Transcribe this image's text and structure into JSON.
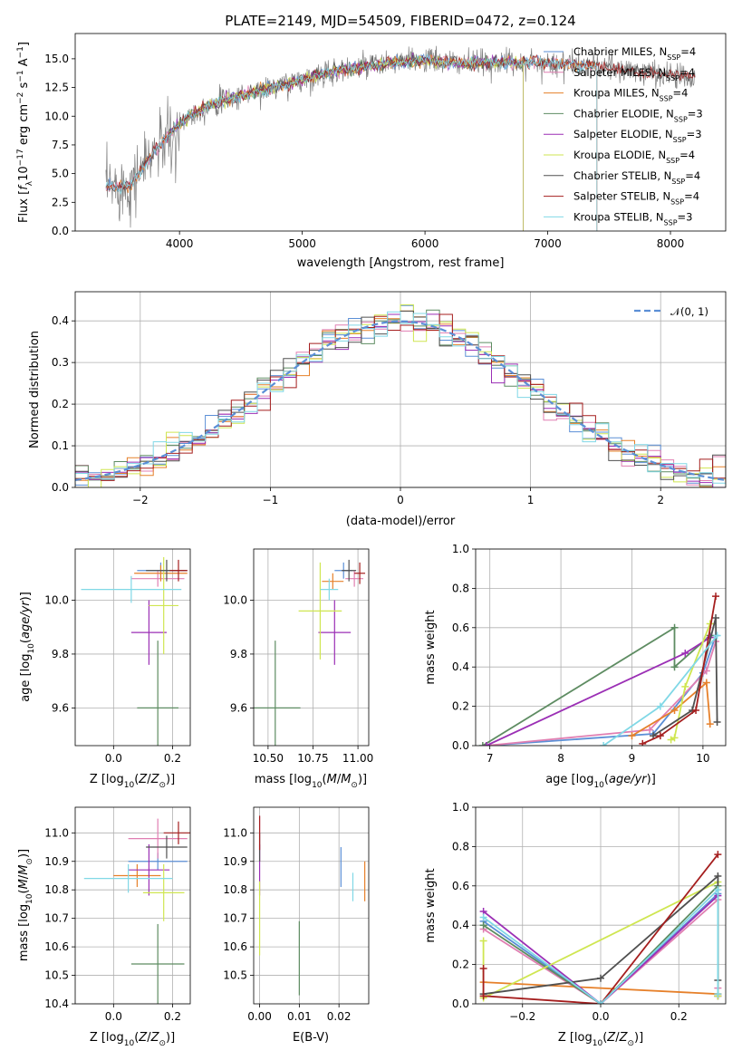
{
  "colors": {
    "Chabrier MILES": "#5b8fd6",
    "Salpeter MILES": "#e07fb2",
    "Kroupa MILES": "#e6802a",
    "Chabrier ELODIE": "#5e8c62",
    "Salpeter ELODIE": "#9b2fb5",
    "Kroupa ELODIE": "#cfe651",
    "Chabrier STELIB": "#505050",
    "Salpeter STELIB": "#a51e1e",
    "Kroupa STELIB": "#80d8e6",
    "data_spectrum": "#808080",
    "normal": "#5b8fd6"
  },
  "chart_data": [
    {
      "id": "spectrum",
      "type": "line",
      "title": "PLATE=2149, MJD=54509, FIBERID=0472, z=0.124",
      "xlabel": "wavelength [Angstrom, rest frame]",
      "ylabel": "Flux [f_λ 10^-17 erg cm^-2 s^-1 A^-1]",
      "xlim": [
        3150,
        8450
      ],
      "ylim": [
        0,
        17.2
      ],
      "xticks": [
        4000,
        5000,
        6000,
        7000,
        8000
      ],
      "yticks": [
        0.0,
        2.5,
        5.0,
        7.5,
        10.0,
        12.5,
        15.0
      ],
      "grid": false,
      "legend_position": "top-right",
      "continuum": {
        "x": [
          3400,
          3600,
          3800,
          3950,
          4100,
          4300,
          4500,
          4800,
          5000,
          5200,
          5500,
          5800,
          6000,
          6300,
          6600,
          6900,
          7200,
          7500,
          7800,
          8000,
          8200
        ],
        "y": [
          3.8,
          4.0,
          7.0,
          8.8,
          10.2,
          11.2,
          11.8,
          12.6,
          13.2,
          13.8,
          14.3,
          14.7,
          14.9,
          14.6,
          14.7,
          14.7,
          14.5,
          14.2,
          13.8,
          13.6,
          13.4
        ]
      },
      "series": [
        {
          "name": "Chabrier MILES",
          "nssp": "4",
          "x_range": [
            3400,
            7400
          ]
        },
        {
          "name": "Salpeter MILES",
          "nssp": "4",
          "x_range": [
            3400,
            7400
          ]
        },
        {
          "name": "Kroupa MILES",
          "nssp": "4",
          "x_range": [
            3400,
            7400
          ]
        },
        {
          "name": "Chabrier ELODIE",
          "nssp": "3",
          "x_range": [
            3900,
            6800
          ]
        },
        {
          "name": "Salpeter ELODIE",
          "nssp": "3",
          "x_range": [
            3900,
            6800
          ]
        },
        {
          "name": "Kroupa ELODIE",
          "nssp": "4",
          "x_range": [
            3900,
            6800
          ]
        },
        {
          "name": "Chabrier STELIB",
          "nssp": "4",
          "x_range": [
            3400,
            8200
          ]
        },
        {
          "name": "Salpeter STELIB",
          "nssp": "4",
          "x_range": [
            3400,
            8200
          ]
        },
        {
          "name": "Kroupa STELIB",
          "nssp": "3",
          "x_range": [
            3400,
            7400
          ]
        }
      ]
    },
    {
      "id": "residuals",
      "type": "line",
      "xlabel": "(data-model)/error",
      "ylabel": "Normed distribution",
      "xlim": [
        -2.5,
        2.5
      ],
      "ylim": [
        0,
        0.47
      ],
      "xticks": [
        -2,
        -1,
        0,
        1,
        2
      ],
      "yticks": [
        0.0,
        0.1,
        0.2,
        0.3,
        0.4
      ],
      "grid": true,
      "legend_position": "top-right",
      "bin_width": 0.1,
      "normal_label": "𝒩(0, 1)"
    },
    {
      "id": "age_vs_Z",
      "type": "scatter",
      "xlabel": "Z [log10(Z/Z⊙)]",
      "ylabel": "age [log10(age/yr)]",
      "xlim": [
        -0.13,
        0.26
      ],
      "ylim": [
        9.46,
        10.19
      ],
      "xticks": [
        0.0,
        0.2
      ],
      "yticks": [
        9.6,
        9.8,
        10.0
      ],
      "grid": true,
      "points": [
        {
          "series": "Chabrier MILES",
          "x": 0.16,
          "xerr": 0.08,
          "y": 10.11,
          "yerr": 0.03
        },
        {
          "series": "Salpeter MILES",
          "x": 0.15,
          "xerr": 0.09,
          "y": 10.08,
          "yerr": 0.03
        },
        {
          "series": "Kroupa MILES",
          "x": 0.16,
          "xerr": 0.09,
          "y": 10.1,
          "yerr": 0.03
        },
        {
          "series": "Chabrier ELODIE",
          "x": 0.15,
          "xerr": 0.07,
          "y": 9.6,
          "yerr": 0.25
        },
        {
          "series": "Salpeter ELODIE",
          "x": 0.12,
          "xerr": 0.06,
          "y": 9.88,
          "yerr": 0.12
        },
        {
          "series": "Kroupa ELODIE",
          "x": 0.17,
          "xerr": 0.05,
          "y": 9.98,
          "yerr": 0.18
        },
        {
          "series": "Chabrier STELIB",
          "x": 0.18,
          "xerr": 0.07,
          "y": 10.11,
          "yerr": 0.04
        },
        {
          "series": "Salpeter STELIB",
          "x": 0.22,
          "xerr": 0.03,
          "y": 10.11,
          "yerr": 0.04
        },
        {
          "series": "Kroupa STELIB",
          "x": 0.06,
          "xerr": 0.17,
          "y": 10.04,
          "yerr": 0.05
        }
      ]
    },
    {
      "id": "age_vs_mass",
      "type": "scatter",
      "xlabel": "mass [log10(M/M⊙)]",
      "xlim": [
        10.42,
        11.06
      ],
      "ylim": [
        9.46,
        10.19
      ],
      "xticks": [
        10.5,
        10.75,
        11.0
      ],
      "yticks": [
        9.6,
        9.8,
        10.0
      ],
      "grid": true,
      "points": [
        {
          "series": "Chabrier MILES",
          "x": 10.92,
          "xerr": 0.05,
          "y": 10.11,
          "yerr": 0.03
        },
        {
          "series": "Salpeter MILES",
          "x": 10.98,
          "xerr": 0.05,
          "y": 10.08,
          "yerr": 0.03
        },
        {
          "series": "Kroupa MILES",
          "x": 10.86,
          "xerr": 0.06,
          "y": 10.07,
          "yerr": 0.03
        },
        {
          "series": "Chabrier ELODIE",
          "x": 10.54,
          "xerr": 0.14,
          "y": 9.6,
          "yerr": 0.25
        },
        {
          "series": "Salpeter ELODIE",
          "x": 10.87,
          "xerr": 0.09,
          "y": 9.88,
          "yerr": 0.12
        },
        {
          "series": "Kroupa ELODIE",
          "x": 10.79,
          "xerr": 0.12,
          "y": 9.96,
          "yerr": 0.18
        },
        {
          "series": "Chabrier STELIB",
          "x": 10.95,
          "xerr": 0.04,
          "y": 10.11,
          "yerr": 0.04
        },
        {
          "series": "Salpeter STELIB",
          "x": 11.01,
          "xerr": 0.03,
          "y": 10.1,
          "yerr": 0.04
        },
        {
          "series": "Kroupa STELIB",
          "x": 10.84,
          "xerr": 0.05,
          "y": 10.04,
          "yerr": 0.04
        }
      ]
    },
    {
      "id": "weight_vs_age",
      "type": "line",
      "xlabel": "age [log10(age/yr)]",
      "ylabel": "mass weight",
      "xlim": [
        6.8,
        10.32
      ],
      "ylim": [
        0,
        1.0
      ],
      "xticks": [
        7,
        8,
        9,
        10
      ],
      "yticks": [
        0.0,
        0.2,
        0.4,
        0.6,
        0.8,
        1.0
      ],
      "grid": true,
      "series": [
        {
          "name": "Chabrier MILES",
          "x": [
            6.95,
            9.3,
            10.0,
            10.18
          ],
          "y": [
            0.0,
            0.06,
            0.37,
            0.56
          ]
        },
        {
          "name": "Salpeter MILES",
          "x": [
            6.95,
            9.25,
            10.05,
            10.18
          ],
          "y": [
            0.0,
            0.08,
            0.38,
            0.53
          ]
        },
        {
          "name": "Kroupa MILES",
          "x": [
            9.0,
            9.6,
            10.05,
            10.1
          ],
          "y": [
            0.05,
            0.18,
            0.32,
            0.11
          ]
        },
        {
          "name": "Chabrier ELODIE",
          "x": [
            6.9,
            9.6,
            9.6,
            10.1
          ],
          "y": [
            0.0,
            0.6,
            0.4,
            0.56
          ]
        },
        {
          "name": "Salpeter ELODIE",
          "x": [
            6.95,
            9.75,
            10.1
          ],
          "y": [
            0.0,
            0.47,
            0.55
          ]
        },
        {
          "name": "Kroupa ELODIE",
          "x": [
            9.55,
            9.6,
            9.75,
            10.1
          ],
          "y": [
            0.03,
            0.04,
            0.3,
            0.62
          ]
        },
        {
          "name": "Chabrier STELIB",
          "x": [
            9.3,
            9.85,
            10.18,
            10.2
          ],
          "y": [
            0.05,
            0.18,
            0.65,
            0.12
          ]
        },
        {
          "name": "Salpeter STELIB",
          "x": [
            9.15,
            9.4,
            9.9,
            10.18
          ],
          "y": [
            0.01,
            0.05,
            0.18,
            0.76
          ]
        },
        {
          "name": "Kroupa STELIB",
          "x": [
            8.6,
            9.4,
            10.2
          ],
          "y": [
            0.0,
            0.2,
            0.56
          ]
        }
      ]
    },
    {
      "id": "mass_vs_Z",
      "type": "scatter",
      "xlabel": "Z [log10(Z/Z⊙)]",
      "ylabel": "mass [log10(M/M⊙)]",
      "xlim": [
        -0.13,
        0.26
      ],
      "ylim": [
        10.4,
        11.09
      ],
      "xticks": [
        0.0,
        0.2
      ],
      "yticks": [
        10.4,
        10.5,
        10.6,
        10.7,
        10.8,
        10.9,
        11.0
      ],
      "grid": true,
      "points": [
        {
          "series": "Chabrier MILES",
          "x": 0.15,
          "xerr": 0.1,
          "y": 10.9,
          "yerr": 0.03
        },
        {
          "series": "Salpeter MILES",
          "x": 0.15,
          "xerr": 0.1,
          "y": 10.98,
          "yerr": 0.07
        },
        {
          "series": "Kroupa MILES",
          "x": 0.08,
          "xerr": 0.08,
          "y": 10.85,
          "yerr": 0.04
        },
        {
          "series": "Chabrier ELODIE",
          "x": 0.15,
          "xerr": 0.09,
          "y": 10.54,
          "yerr": 0.14
        },
        {
          "series": "Salpeter ELODIE",
          "x": 0.12,
          "xerr": 0.07,
          "y": 10.87,
          "yerr": 0.09
        },
        {
          "series": "Kroupa ELODIE",
          "x": 0.17,
          "xerr": 0.07,
          "y": 10.79,
          "yerr": 0.1
        },
        {
          "series": "Chabrier STELIB",
          "x": 0.18,
          "xerr": 0.07,
          "y": 10.95,
          "yerr": 0.04
        },
        {
          "series": "Salpeter STELIB",
          "x": 0.22,
          "xerr": 0.05,
          "y": 11.0,
          "yerr": 0.04
        },
        {
          "series": "Kroupa STELIB",
          "x": 0.05,
          "xerr": 0.15,
          "y": 10.84,
          "yerr": 0.05
        }
      ]
    },
    {
      "id": "mass_vs_EBV",
      "type": "scatter",
      "xlabel": "E(B-V)",
      "xlim": [
        -0.0015,
        0.0275
      ],
      "ylim": [
        10.4,
        11.09
      ],
      "xticks": [
        0.0,
        0.01,
        0.02
      ],
      "yticks": [
        10.5,
        10.6,
        10.7,
        10.8,
        10.9,
        11.0
      ],
      "grid": true,
      "points": [
        {
          "series": "Chabrier MILES",
          "x": 0.0205,
          "xerr": 0,
          "y": 10.88,
          "yerr": 0.07
        },
        {
          "series": "Salpeter MILES",
          "x": 0.0,
          "xerr": 0,
          "y": 10.98,
          "yerr": 0.08
        },
        {
          "series": "Kroupa MILES",
          "x": 0.0265,
          "xerr": 0,
          "y": 10.83,
          "yerr": 0.07
        },
        {
          "series": "Chabrier ELODIE",
          "x": 0.01,
          "xerr": 0,
          "y": 10.56,
          "yerr": 0.13
        },
        {
          "series": "Salpeter ELODIE",
          "x": 0.0,
          "xerr": 0,
          "y": 10.87,
          "yerr": 0.09
        },
        {
          "series": "Kroupa ELODIE",
          "x": 0.0,
          "xerr": 0,
          "y": 10.7,
          "yerr": 0.13
        },
        {
          "series": "Chabrier STELIB",
          "x": 0.0,
          "xerr": 0,
          "y": 10.95,
          "yerr": 0.05
        },
        {
          "series": "Salpeter STELIB",
          "x": 0.0,
          "xerr": 0,
          "y": 11.0,
          "yerr": 0.06
        },
        {
          "series": "Kroupa STELIB",
          "x": 0.0235,
          "xerr": 0,
          "y": 10.81,
          "yerr": 0.05
        }
      ]
    },
    {
      "id": "weight_vs_Z",
      "type": "line",
      "xlabel": "Z [log10(Z/Z⊙)]",
      "ylabel": "mass weight",
      "xlim": [
        -0.32,
        0.32
      ],
      "ylim": [
        0,
        1.0
      ],
      "xticks": [
        -0.2,
        0.0,
        0.2
      ],
      "yticks": [
        0.0,
        0.2,
        0.4,
        0.6,
        0.8,
        1.0
      ],
      "grid": true,
      "series": [
        {
          "name": "Chabrier MILES",
          "x": [
            -0.3,
            0.0,
            0.3,
            0.3
          ],
          "y": [
            0.42,
            0.0,
            0.56,
            0.04
          ]
        },
        {
          "name": "Salpeter MILES",
          "x": [
            -0.3,
            0.0,
            0.3,
            0.3
          ],
          "y": [
            0.38,
            0.0,
            0.53,
            0.08
          ]
        },
        {
          "name": "Kroupa MILES",
          "x": [
            -0.3,
            0.3,
            0.3
          ],
          "y": [
            0.11,
            0.05,
            0.05
          ]
        },
        {
          "name": "Chabrier ELODIE",
          "x": [
            -0.3,
            0.0,
            0.3,
            0.3
          ],
          "y": [
            0.4,
            0.0,
            0.6,
            0.04
          ]
        },
        {
          "name": "Salpeter ELODIE",
          "x": [
            -0.3,
            0.0,
            0.3,
            0.3
          ],
          "y": [
            0.47,
            0.0,
            0.55,
            0.04
          ]
        },
        {
          "name": "Kroupa ELODIE",
          "x": [
            -0.3,
            -0.3,
            0.3,
            0.3
          ],
          "y": [
            0.32,
            0.03,
            0.62,
            0.04
          ]
        },
        {
          "name": "Chabrier STELIB",
          "x": [
            -0.3,
            0.0,
            0.3,
            0.3
          ],
          "y": [
            0.05,
            0.13,
            0.65,
            0.12
          ]
        },
        {
          "name": "Salpeter STELIB",
          "x": [
            -0.3,
            -0.3,
            0.0,
            0.3
          ],
          "y": [
            0.18,
            0.04,
            0.0,
            0.76
          ]
        },
        {
          "name": "Kroupa STELIB",
          "x": [
            -0.3,
            0.0,
            0.3,
            0.3
          ],
          "y": [
            0.44,
            0.0,
            0.58,
            0.05
          ]
        }
      ]
    }
  ]
}
